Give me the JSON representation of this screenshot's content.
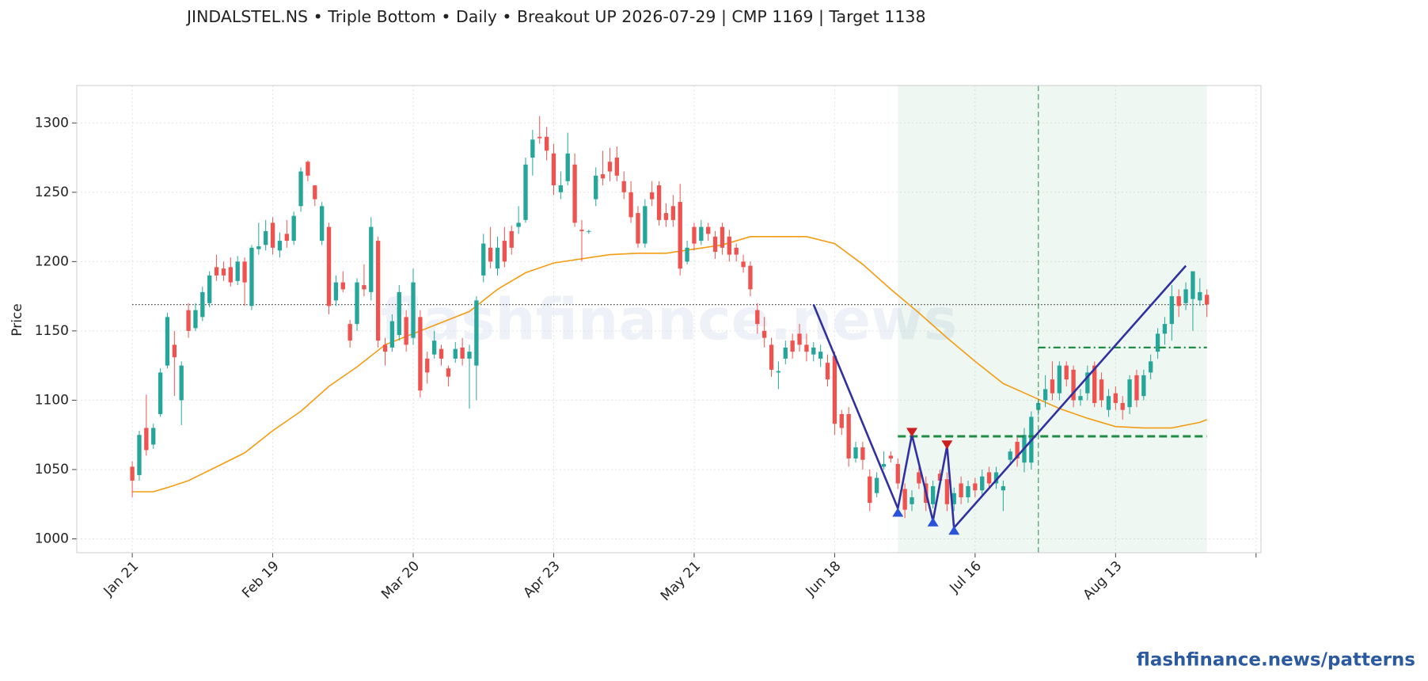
{
  "chart_data": {
    "type": "candlestick",
    "title": "JINDALSTEL.NS  •  Triple Bottom  •  Daily  •  Breakout UP 2026-07-29  |  CMP 1169  |  Target 1138",
    "ylabel": "Price",
    "xlim": [
      -7.9,
      160.7
    ],
    "ylim": [
      990,
      1327
    ],
    "yticks": [
      1000,
      1050,
      1100,
      1150,
      1200,
      1250,
      1300
    ],
    "xticks": [
      {
        "value": 0,
        "label": "Jan 21"
      },
      {
        "value": 20,
        "label": "Feb 19"
      },
      {
        "value": 40,
        "label": "Mar 20"
      },
      {
        "value": 60,
        "label": "Apr 23"
      },
      {
        "value": 80,
        "label": "May 21"
      },
      {
        "value": 100,
        "label": "Jun 18"
      },
      {
        "value": 120,
        "label": "Jul 16"
      },
      {
        "value": 140,
        "label": "Aug 13"
      },
      {
        "value": 160,
        "label": null
      }
    ],
    "grid": true,
    "candles": {
      "up_color": "#26a69a",
      "down_color": "#ef5350",
      "open": [
        1052,
        1046,
        1080,
        1068,
        1090,
        1125,
        1140,
        1100,
        1165,
        1152,
        1160,
        1170,
        1196,
        1195,
        1196,
        1186,
        1200,
        1168,
        1209,
        1212,
        1228,
        1208,
        1220,
        1215,
        1240,
        1272,
        1255,
        1215,
        1225,
        1172,
        1185,
        1155,
        1155,
        1183,
        1178,
        1215,
        1140,
        1138,
        1147,
        1160,
        1145,
        1160,
        1130,
        1133,
        1137,
        1123,
        1130,
        1138,
        1130,
        1125,
        1190,
        1210,
        1195,
        1215,
        1222,
        1225,
        1230,
        1275,
        1290,
        1290,
        1278,
        1250,
        1258,
        1270,
        1223,
        1222,
        1245,
        1263,
        1272,
        1275,
        1258,
        1250,
        1235,
        1213,
        1250,
        1255,
        1235,
        1240,
        1243,
        1200,
        1225,
        1215,
        1225,
        1218,
        1225,
        1218,
        1210,
        1200,
        1197,
        1165,
        1150,
        1140,
        1120,
        1130,
        1143,
        1148,
        1140,
        1133,
        1130,
        1127,
        1132,
        1090,
        1090,
        1058,
        1066,
        1045,
        1033,
        1052,
        1060,
        1054,
        1036,
        1025,
        1048,
        1040,
        1025,
        1047,
        1043,
        1025,
        1040,
        1030,
        1040,
        1035,
        1048,
        1040,
        1035,
        1057,
        1070,
        1055,
        1055,
        1093,
        1100,
        1115,
        1105,
        1125,
        1122,
        1100,
        1105,
        1125,
        1115,
        1093,
        1105,
        1098,
        1095,
        1118,
        1103,
        1120,
        1135,
        1148,
        1155,
        1175,
        1170,
        1173,
        1172,
        1176
      ],
      "high": [
        1056,
        1078,
        1104,
        1083,
        1123,
        1163,
        1150,
        1128,
        1170,
        1170,
        1182,
        1193,
        1205,
        1200,
        1203,
        1204,
        1203,
        1212,
        1228,
        1230,
        1232,
        1221,
        1230,
        1236,
        1268,
        1273,
        1255,
        1243,
        1228,
        1190,
        1193,
        1158,
        1188,
        1198,
        1232,
        1218,
        1145,
        1162,
        1183,
        1165,
        1195,
        1165,
        1135,
        1150,
        1140,
        1125,
        1142,
        1145,
        1140,
        1175,
        1220,
        1225,
        1218,
        1225,
        1226,
        1240,
        1275,
        1295,
        1305,
        1297,
        1285,
        1265,
        1293,
        1278,
        1230,
        1223,
        1268,
        1280,
        1282,
        1283,
        1265,
        1258,
        1240,
        1245,
        1258,
        1258,
        1242,
        1248,
        1256,
        1215,
        1228,
        1230,
        1228,
        1222,
        1228,
        1223,
        1213,
        1205,
        1200,
        1170,
        1160,
        1145,
        1128,
        1143,
        1148,
        1155,
        1148,
        1142,
        1140,
        1133,
        1135,
        1093,
        1095,
        1070,
        1070,
        1050,
        1048,
        1063,
        1063,
        1058,
        1040,
        1035,
        1052,
        1045,
        1042,
        1050,
        1048,
        1037,
        1045,
        1042,
        1044,
        1050,
        1052,
        1052,
        1042,
        1065,
        1075,
        1080,
        1092,
        1100,
        1118,
        1128,
        1128,
        1128,
        1125,
        1108,
        1125,
        1128,
        1120,
        1108,
        1110,
        1103,
        1118,
        1122,
        1122,
        1133,
        1152,
        1160,
        1183,
        1180,
        1185,
        1193,
        1188,
        1180
      ],
      "low": [
        1030,
        1042,
        1060,
        1065,
        1088,
        1123,
        1103,
        1082,
        1145,
        1150,
        1157,
        1167,
        1186,
        1186,
        1182,
        1183,
        1168,
        1165,
        1205,
        1208,
        1205,
        1203,
        1210,
        1212,
        1236,
        1258,
        1240,
        1212,
        1162,
        1168,
        1178,
        1138,
        1150,
        1175,
        1172,
        1138,
        1125,
        1135,
        1143,
        1135,
        1140,
        1102,
        1112,
        1130,
        1125,
        1110,
        1127,
        1125,
        1094,
        1100,
        1185,
        1195,
        1190,
        1196,
        1205,
        1220,
        1228,
        1262,
        1285,
        1273,
        1248,
        1245,
        1255,
        1225,
        1200,
        1220,
        1240,
        1255,
        1258,
        1258,
        1245,
        1228,
        1210,
        1210,
        1240,
        1226,
        1225,
        1225,
        1190,
        1198,
        1208,
        1212,
        1215,
        1202,
        1205,
        1200,
        1200,
        1192,
        1175,
        1148,
        1138,
        1117,
        1108,
        1126,
        1130,
        1135,
        1128,
        1128,
        1124,
        1110,
        1075,
        1075,
        1052,
        1055,
        1050,
        1020,
        1030,
        1050,
        1055,
        1036,
        1015,
        1020,
        1036,
        1020,
        1022,
        1038,
        1020,
        1020,
        1025,
        1026,
        1030,
        1030,
        1036,
        1036,
        1020,
        1053,
        1052,
        1048,
        1050,
        1089,
        1095,
        1100,
        1100,
        1110,
        1095,
        1096,
        1100,
        1095,
        1095,
        1088,
        1093,
        1086,
        1090,
        1095,
        1100,
        1115,
        1130,
        1140,
        1143,
        1160,
        1165,
        1150,
        1168,
        1160
      ],
      "close": [
        1042,
        1075,
        1064,
        1080,
        1120,
        1160,
        1131,
        1125,
        1150,
        1165,
        1178,
        1190,
        1190,
        1190,
        1185,
        1200,
        1185,
        1210,
        1211,
        1222,
        1210,
        1215,
        1215,
        1233,
        1265,
        1262,
        1245,
        1240,
        1168,
        1185,
        1180,
        1143,
        1185,
        1180,
        1225,
        1143,
        1135,
        1157,
        1178,
        1140,
        1185,
        1107,
        1120,
        1143,
        1130,
        1117,
        1137,
        1130,
        1135,
        1172,
        1213,
        1200,
        1210,
        1200,
        1210,
        1228,
        1270,
        1288,
        1289,
        1280,
        1255,
        1255,
        1278,
        1228,
        1222,
        1222,
        1262,
        1260,
        1265,
        1262,
        1250,
        1232,
        1213,
        1240,
        1245,
        1230,
        1230,
        1230,
        1195,
        1210,
        1213,
        1225,
        1220,
        1207,
        1210,
        1205,
        1205,
        1196,
        1180,
        1155,
        1145,
        1122,
        1121,
        1138,
        1135,
        1140,
        1135,
        1138,
        1135,
        1115,
        1083,
        1080,
        1058,
        1066,
        1057,
        1026,
        1044,
        1054,
        1058,
        1040,
        1021,
        1030,
        1040,
        1026,
        1038,
        1042,
        1025,
        1033,
        1030,
        1038,
        1035,
        1045,
        1040,
        1048,
        1038,
        1063,
        1058,
        1075,
        1088,
        1098,
        1108,
        1105,
        1125,
        1115,
        1100,
        1103,
        1120,
        1098,
        1100,
        1103,
        1098,
        1093,
        1115,
        1100,
        1118,
        1128,
        1148,
        1155,
        1175,
        1168,
        1180,
        1193,
        1178,
        1169
      ]
    },
    "ma": {
      "color": "#f39c12",
      "x": [
        0,
        3,
        5,
        8,
        12,
        16,
        20,
        24,
        28,
        32,
        36,
        40,
        44,
        48,
        52,
        56,
        60,
        64,
        68,
        72,
        76,
        80,
        84,
        88,
        92,
        96,
        100,
        104,
        108,
        112,
        116,
        120,
        124,
        128,
        132,
        136,
        140,
        144,
        148,
        152,
        153
      ],
      "values": [
        1034,
        1034,
        1037,
        1042,
        1052,
        1062,
        1078,
        1092,
        1110,
        1124,
        1140,
        1148,
        1156,
        1164,
        1180,
        1192,
        1199,
        1202,
        1205,
        1206,
        1206,
        1209,
        1212,
        1218,
        1218,
        1218,
        1213,
        1198,
        1180,
        1163,
        1145,
        1128,
        1112,
        1103,
        1094,
        1087,
        1081,
        1080,
        1080,
        1084,
        1086
      ]
    },
    "cmp_line": {
      "value": 1169,
      "color": "#444444"
    },
    "pattern_zone": {
      "x": [
        109,
        153
      ],
      "color": "#2e9e5b"
    },
    "breakout": {
      "x": 129,
      "level": 1074,
      "color": "#1e8c45"
    },
    "target_line": {
      "value": 1138,
      "x": [
        129,
        153
      ],
      "color": "#1e8c45"
    },
    "zigzag": {
      "color": "#3030a0",
      "x": [
        97,
        109,
        111,
        114,
        116,
        117,
        150
      ],
      "values": [
        1169,
        1022,
        1075,
        1013,
        1067,
        1008,
        1197
      ]
    },
    "peaks": {
      "color": "#cc1f1f",
      "x": [
        111,
        116
      ],
      "values": [
        1076,
        1067
      ]
    },
    "troughs": {
      "color": "#2952d9",
      "x": [
        109,
        114,
        117
      ],
      "values": [
        1020,
        1013,
        1007
      ]
    },
    "watermark": "flashfinance.news",
    "footer": "flashfinance.news/patterns"
  }
}
